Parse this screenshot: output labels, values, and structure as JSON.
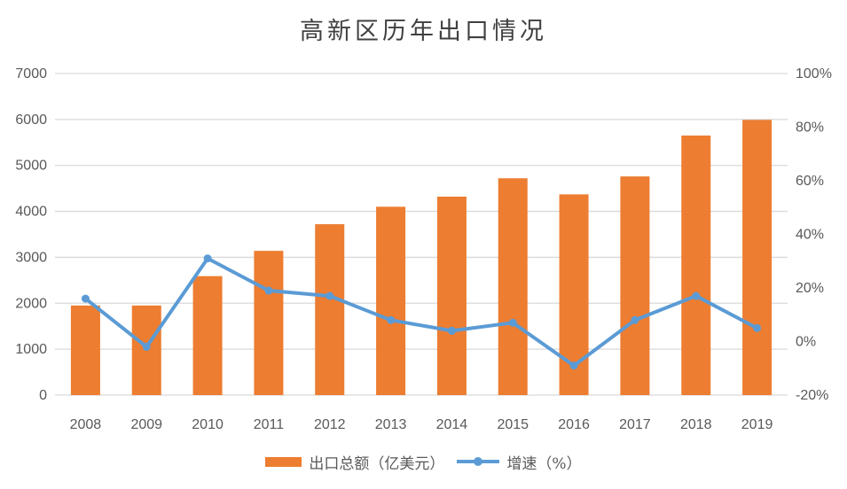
{
  "page": {
    "background": "#ffffff"
  },
  "chart_data": {
    "type": "combo-bar-line",
    "title": "高新区历年出口情况",
    "categories": [
      "2008",
      "2009",
      "2010",
      "2011",
      "2012",
      "2013",
      "2014",
      "2015",
      "2016",
      "2017",
      "2018",
      "2019"
    ],
    "series": [
      {
        "name": "出口总额（亿美元）",
        "type": "bar",
        "axis": "left",
        "color": "#ED7D31",
        "values": [
          1950,
          1950,
          2590,
          3140,
          3720,
          4100,
          4320,
          4720,
          4370,
          4760,
          5650,
          5990
        ]
      },
      {
        "name": "增速（%）",
        "type": "line",
        "axis": "right",
        "color": "#5B9BD5",
        "values": [
          16,
          -2,
          31,
          19,
          17,
          8,
          4,
          7,
          -9,
          8,
          17,
          5
        ]
      }
    ],
    "left_axis": {
      "min": 0,
      "max": 7000,
      "step": 1000,
      "tick_labels": [
        "0",
        "1000",
        "2000",
        "3000",
        "4000",
        "5000",
        "6000",
        "7000"
      ]
    },
    "right_axis": {
      "min": -20,
      "max": 100,
      "step": 20,
      "tick_labels": [
        "-20%",
        "0%",
        "20%",
        "40%",
        "60%",
        "80%",
        "100%"
      ]
    },
    "grid": true,
    "legend_position": "bottom",
    "gridline_color": "#D9D9D9",
    "axis_text_color": "#595959",
    "title_color": "#404040"
  }
}
